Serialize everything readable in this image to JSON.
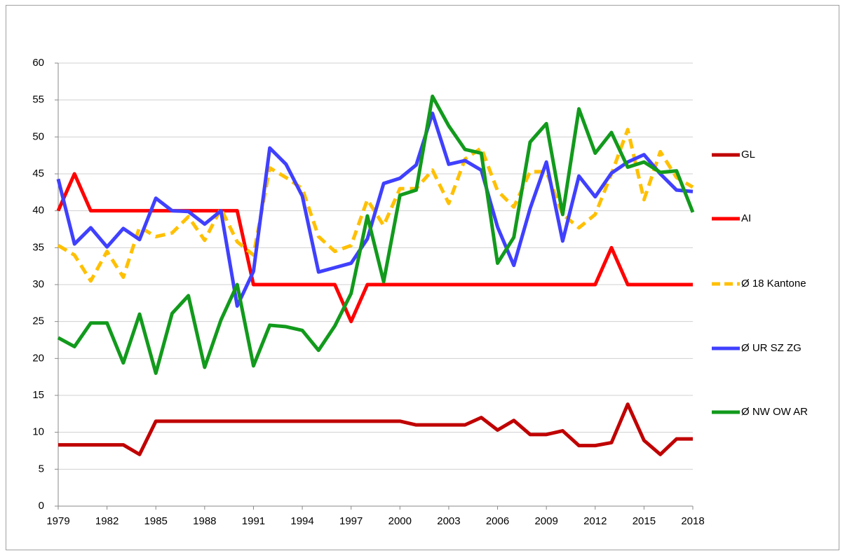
{
  "chart_data": {
    "type": "line",
    "x": [
      1979,
      1980,
      1981,
      1982,
      1983,
      1984,
      1985,
      1986,
      1987,
      1988,
      1989,
      1990,
      1991,
      1992,
      1993,
      1994,
      1995,
      1996,
      1997,
      1998,
      1999,
      2000,
      2001,
      2002,
      2003,
      2004,
      2005,
      2006,
      2007,
      2008,
      2009,
      2010,
      2011,
      2012,
      2013,
      2014,
      2015,
      2016,
      2017,
      2018
    ],
    "xlim": [
      1979,
      2018
    ],
    "xticks": [
      1979,
      1982,
      1985,
      1988,
      1991,
      1994,
      1997,
      2000,
      2003,
      2006,
      2009,
      2012,
      2015,
      2018
    ],
    "ylim": [
      0,
      60
    ],
    "yticks": [
      0,
      5,
      10,
      15,
      20,
      25,
      30,
      35,
      40,
      45,
      50,
      55,
      60
    ],
    "grid": true,
    "legend": "right",
    "series": [
      {
        "name": "GL",
        "color": "#c00000",
        "dashed": false,
        "values": [
          8.3,
          8.3,
          8.3,
          8.3,
          8.3,
          7.0,
          11.5,
          11.5,
          11.5,
          11.5,
          11.5,
          11.5,
          11.5,
          11.5,
          11.5,
          11.5,
          11.5,
          11.5,
          11.5,
          11.5,
          11.5,
          11.5,
          11.0,
          11.0,
          11.0,
          11.0,
          12.0,
          10.3,
          11.6,
          9.7,
          9.7,
          10.2,
          8.2,
          8.2,
          8.6,
          13.8,
          8.9,
          7.0,
          9.1,
          9.1
        ]
      },
      {
        "name": "AI",
        "color": "#ff0000",
        "dashed": false,
        "values": [
          40,
          45,
          40,
          40,
          40,
          40,
          40,
          40,
          40,
          40,
          40,
          40,
          30,
          30,
          30,
          30,
          30,
          30,
          25,
          30,
          30,
          30,
          30,
          30,
          30,
          30,
          30,
          30,
          30,
          30,
          30,
          30,
          30,
          30,
          35,
          30,
          30,
          30,
          30,
          30
        ]
      },
      {
        "name": "Ø 18 Kantone",
        "color": "#ffc000",
        "dashed": true,
        "values": [
          35.3,
          34,
          30.5,
          34.5,
          31,
          37.8,
          36.5,
          37,
          39.2,
          36,
          40.3,
          35.8,
          34,
          45.8,
          44.5,
          43,
          36.5,
          34.5,
          35.3,
          41.5,
          38,
          43,
          43,
          45.5,
          41,
          47,
          48.5,
          42.7,
          40.5,
          45.3,
          45.3,
          39.5,
          37.7,
          39.5,
          45,
          51,
          41.5,
          48,
          44.5,
          43.2
        ]
      },
      {
        "name": "Ø UR SZ ZG",
        "color": "#4040ff",
        "dashed": false,
        "values": [
          44.3,
          35.5,
          37.7,
          35.1,
          37.6,
          36.1,
          41.7,
          40,
          39.9,
          38.2,
          40,
          27.1,
          31.8,
          48.5,
          46.3,
          42,
          31.7,
          32.3,
          32.9,
          36.2,
          43.7,
          44.4,
          46.2,
          53.2,
          46.3,
          46.8,
          45.5,
          37.8,
          32.6,
          40.3,
          46.6,
          35.9,
          44.7,
          41.9,
          45.1,
          46.6,
          47.6,
          45,
          42.8,
          42.6
        ]
      },
      {
        "name": "Ø NW OW AR",
        "color": "#129a1c",
        "dashed": false,
        "values": [
          22.8,
          21.6,
          24.8,
          24.8,
          19.4,
          26,
          18,
          26.1,
          28.5,
          18.8,
          25.2,
          30,
          19,
          24.5,
          24.3,
          23.8,
          21.1,
          24.4,
          28.8,
          39.3,
          30.4,
          42.1,
          42.8,
          55.5,
          51.5,
          48.3,
          47.8,
          32.9,
          36.4,
          49.3,
          51.8,
          39.5,
          53.8,
          47.8,
          50.6,
          45.9,
          46.6,
          45.2,
          45.4,
          39.8
        ]
      }
    ]
  }
}
